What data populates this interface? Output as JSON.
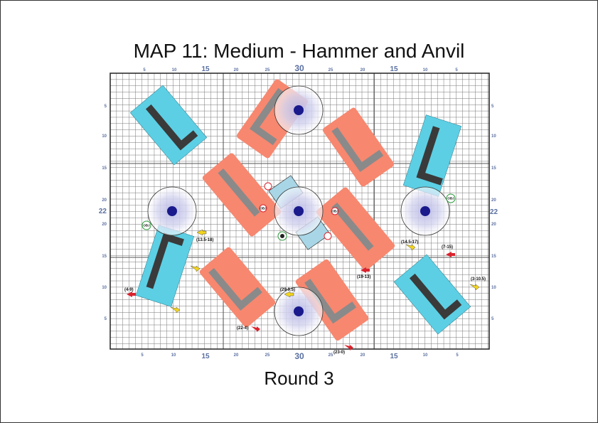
{
  "title": "MAP 11: Medium - Hammer and Anvil",
  "subtitle": "Round 3",
  "axis_labels": {
    "top": [
      "5",
      "10",
      "15",
      "20",
      "25",
      "30",
      "25",
      "20",
      "15",
      "10",
      "5"
    ],
    "bottom": [
      "5",
      "10",
      "15",
      "20",
      "25",
      "30",
      "25",
      "20",
      "15",
      "10",
      "5"
    ],
    "left": [
      "5",
      "10",
      "15",
      "20",
      "22",
      "20",
      "15",
      "10",
      "5"
    ],
    "right": [
      "5",
      "10",
      "15",
      "20",
      "22",
      "20",
      "15",
      "10",
      "5"
    ]
  },
  "deployment_coords": [
    "(13.5-18)",
    "(14.5-17)",
    "(7-15)",
    "(3-10.5)",
    "(19-13)",
    "(4-9)",
    "(29-9.5)",
    "(22-4)",
    "(23-0)"
  ],
  "objective_tags": [
    "OBJ",
    "OBJ",
    "OBJ",
    "OBJ",
    "OBJ",
    "OBJ"
  ],
  "colors": {
    "salmon_terrain": "#f7876f",
    "cyan_terrain": "#5ccfe4",
    "building": "#8a8a8a",
    "dark_building": "#3a3a3a",
    "objective_dot": "#1a1a8c",
    "red_arrow": "#d9232e",
    "yellow_arrow": "#f3d41e"
  }
}
